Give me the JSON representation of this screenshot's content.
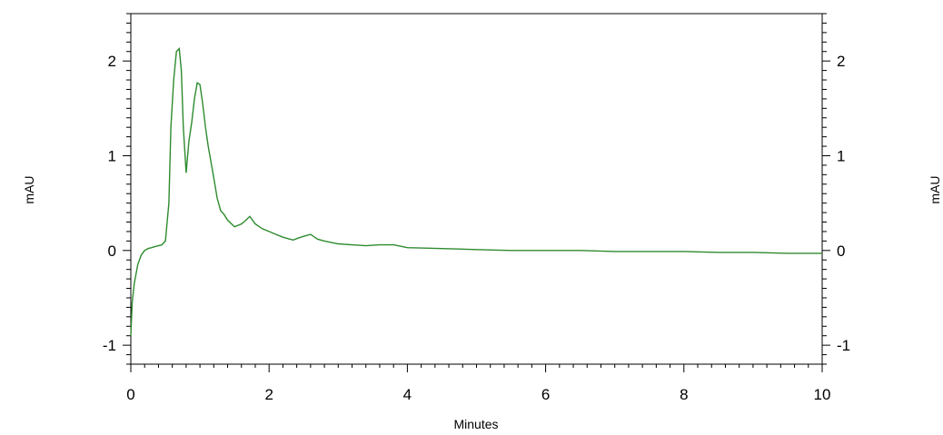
{
  "chart_data": {
    "type": "line",
    "title": "",
    "xlabel": "Minutes",
    "ylabel_left": "mAU",
    "ylabel_right": "mAU",
    "xlim": [
      0,
      10
    ],
    "ylim": [
      -1.2,
      2.5
    ],
    "x_ticks": [
      0,
      2,
      4,
      6,
      8,
      10
    ],
    "y_ticks": [
      -1,
      0,
      1,
      2
    ],
    "grid": false,
    "line_color": "#2e8b2e",
    "series": [
      {
        "x": [
          0,
          0.02,
          0.05,
          0.1,
          0.15,
          0.2,
          0.25,
          0.3,
          0.35,
          0.4,
          0.45,
          0.5,
          0.55,
          0.58,
          0.62,
          0.66,
          0.7,
          0.73,
          0.76,
          0.8,
          0.84,
          0.88,
          0.92,
          0.96,
          1.0,
          1.04,
          1.08,
          1.12,
          1.18,
          1.25,
          1.3,
          1.35,
          1.4,
          1.5,
          1.6,
          1.65,
          1.72,
          1.8,
          1.9,
          2.0,
          2.1,
          2.2,
          2.3,
          2.35,
          2.42,
          2.5,
          2.6,
          2.7,
          2.8,
          3.0,
          3.2,
          3.4,
          3.6,
          3.8,
          4.0,
          4.5,
          5.0,
          5.5,
          6.0,
          6.5,
          7.0,
          7.5,
          8.0,
          8.5,
          9.0,
          9.5,
          10.0
        ],
        "y": [
          -0.9,
          -0.55,
          -0.35,
          -0.15,
          -0.05,
          0.0,
          0.02,
          0.03,
          0.04,
          0.05,
          0.06,
          0.1,
          0.5,
          1.3,
          1.8,
          2.1,
          2.13,
          1.9,
          1.3,
          0.82,
          1.15,
          1.35,
          1.6,
          1.77,
          1.75,
          1.55,
          1.3,
          1.1,
          0.85,
          0.55,
          0.42,
          0.38,
          0.32,
          0.25,
          0.28,
          0.31,
          0.36,
          0.28,
          0.23,
          0.2,
          0.17,
          0.14,
          0.12,
          0.11,
          0.13,
          0.15,
          0.17,
          0.12,
          0.1,
          0.07,
          0.06,
          0.05,
          0.06,
          0.06,
          0.03,
          0.02,
          0.01,
          0.0,
          0.0,
          0.0,
          -0.01,
          -0.01,
          -0.01,
          -0.02,
          -0.02,
          -0.03,
          -0.03
        ]
      }
    ]
  }
}
